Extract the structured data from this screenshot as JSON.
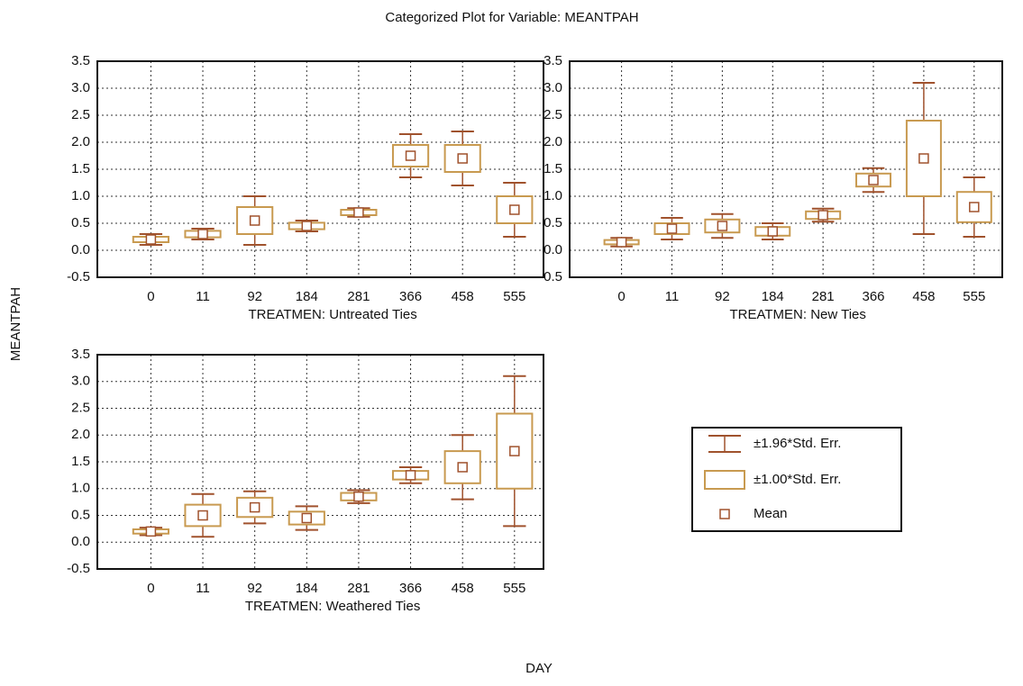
{
  "title": "Categorized Plot for Variable: MEANTPAH",
  "y_label": "MEANTPAH",
  "x_label": "DAY",
  "legend": [
    "±1.96*Std. Err.",
    "±1.00*Std. Err.",
    "Mean"
  ],
  "chart_data": [
    {
      "type": "box",
      "subtitle": "TREATMEN: Untreated Ties",
      "categories": [
        "0",
        "11",
        "92",
        "184",
        "281",
        "366",
        "458",
        "555"
      ],
      "mean": [
        0.2,
        0.3,
        0.55,
        0.45,
        0.7,
        1.75,
        1.7,
        0.75
      ],
      "se": [
        0.05,
        0.06,
        0.25,
        0.06,
        0.05,
        0.2,
        0.25,
        0.25
      ],
      "ci": [
        0.1,
        0.1,
        0.45,
        0.1,
        0.08,
        0.4,
        0.5,
        0.5
      ],
      "ylim": [
        -0.5,
        3.5
      ],
      "yticks": [
        -0.5,
        {
          "value": 0,
          "label": "0.0"
        },
        0.5,
        {
          "value": 1,
          "label": "1.0"
        },
        1.5,
        {
          "value": 2,
          "label": "2.0"
        },
        2.5,
        {
          "value": 3,
          "label": "3.0"
        },
        3.5
      ],
      "grid": true,
      "box_color": "#c89a50",
      "whisker_color": "#a0522d"
    },
    {
      "type": "box",
      "subtitle": "TREATMEN: New Ties",
      "categories": [
        "0",
        "11",
        "92",
        "184",
        "281",
        "366",
        "458",
        "555"
      ],
      "mean": [
        0.15,
        0.4,
        0.45,
        0.35,
        0.65,
        1.3,
        1.7,
        0.8
      ],
      "se": [
        0.04,
        0.1,
        0.12,
        0.08,
        0.07,
        0.12,
        0.7,
        0.28
      ],
      "ci": [
        0.08,
        0.2,
        0.22,
        0.15,
        0.12,
        0.22,
        1.4,
        0.55
      ],
      "ylim": [
        -0.5,
        3.5
      ],
      "yticks": [
        -0.5,
        {
          "value": 0,
          "label": "0.0"
        },
        0.5,
        {
          "value": 1,
          "label": "1.0"
        },
        1.5,
        {
          "value": 2,
          "label": "2.0"
        },
        2.5,
        {
          "value": 3,
          "label": "3.0"
        },
        3.5
      ],
      "grid": true,
      "box_color": "#c89a50",
      "whisker_color": "#a0522d"
    },
    {
      "type": "box",
      "subtitle": "TREATMEN: Weathered Ties",
      "categories": [
        "0",
        "11",
        "92",
        "184",
        "281",
        "366",
        "458",
        "555"
      ],
      "mean": [
        0.2,
        0.5,
        0.65,
        0.45,
        0.85,
        1.25,
        1.4,
        1.7
      ],
      "se": [
        0.04,
        0.2,
        0.18,
        0.12,
        0.07,
        0.08,
        0.3,
        0.7
      ],
      "ci": [
        0.07,
        0.4,
        0.3,
        0.22,
        0.12,
        0.15,
        0.6,
        1.4
      ],
      "ylim": [
        -0.5,
        3.5
      ],
      "yticks": [
        -0.5,
        {
          "value": 0,
          "label": "0.0"
        },
        0.5,
        {
          "value": 1,
          "label": "1.0"
        },
        1.5,
        {
          "value": 2,
          "label": "2.0"
        },
        2.5,
        {
          "value": 3,
          "label": "3.0"
        },
        3.5
      ],
      "grid": true,
      "box_color": "#c89a50",
      "whisker_color": "#a0522d"
    }
  ]
}
